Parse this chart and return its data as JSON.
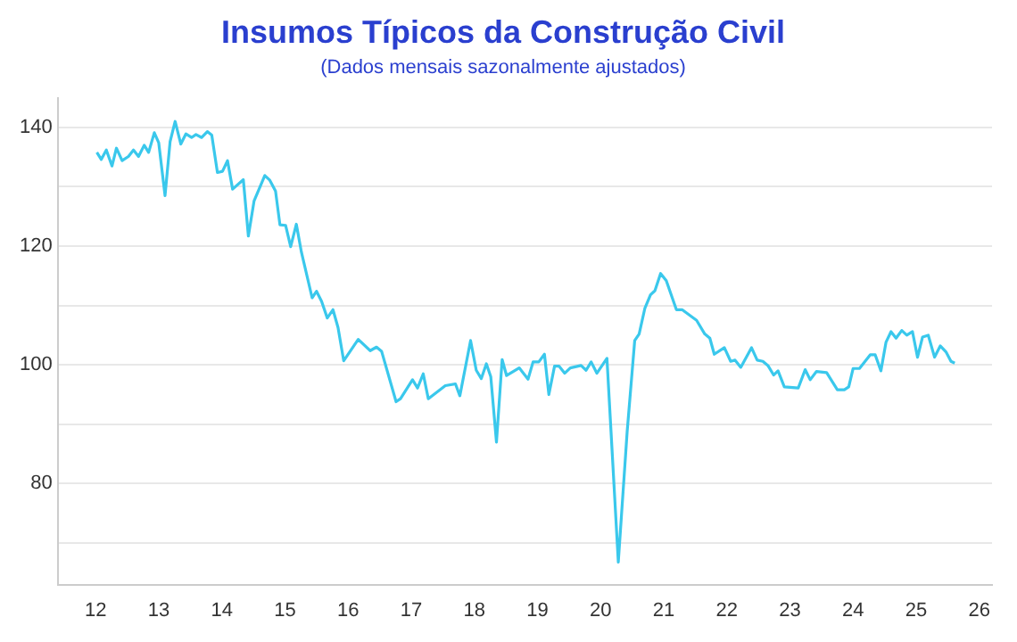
{
  "chart_data": {
    "type": "line",
    "title": "Insumos Típicos da Construção Civil",
    "subtitle": "(Dados mensais sazonalmente ajustados)",
    "xlim": [
      11.4,
      26.2
    ],
    "xticks": [
      12,
      13,
      14,
      15,
      16,
      17,
      18,
      19,
      20,
      21,
      22,
      23,
      24,
      25,
      26
    ],
    "ylim": [
      63,
      145
    ],
    "yticks": [
      {
        "value": 70,
        "label": null
      },
      80,
      {
        "value": 90,
        "label": null
      },
      100,
      {
        "value": 110,
        "label": null
      },
      120,
      {
        "value": 130,
        "label": null
      },
      140
    ],
    "grid": "y",
    "legend": false,
    "marker": "none",
    "line_style": "solid",
    "series": [
      {
        "color": "#3ac8ec",
        "x": [
          12.02,
          12.09,
          12.17,
          12.26,
          12.33,
          12.42,
          12.52,
          12.6,
          12.68,
          12.77,
          12.84,
          12.93,
          13.0,
          13.1,
          13.18,
          13.26,
          13.35,
          13.43,
          13.52,
          13.59,
          13.68,
          13.77,
          13.84,
          13.93,
          14.01,
          14.09,
          14.17,
          14.34,
          14.42,
          14.51,
          14.68,
          14.76,
          14.85,
          14.92,
          15.01,
          15.09,
          15.18,
          15.26,
          15.43,
          15.5,
          15.58,
          15.67,
          15.76,
          15.84,
          15.93,
          16.16,
          16.35,
          16.45,
          16.53,
          16.76,
          16.83,
          17.02,
          17.1,
          17.19,
          17.27,
          17.54,
          17.7,
          17.77,
          17.94,
          18.03,
          18.11,
          18.19,
          18.26,
          18.35,
          18.44,
          18.51,
          18.71,
          18.85,
          18.93,
          19.02,
          19.11,
          19.18,
          19.27,
          19.34,
          19.43,
          19.52,
          19.69,
          19.77,
          19.85,
          19.94,
          20.1,
          20.28,
          20.42,
          20.54,
          20.61,
          20.7,
          20.79,
          20.86,
          20.95,
          21.04,
          21.2,
          21.29,
          21.52,
          21.65,
          21.73,
          21.8,
          21.96,
          22.06,
          22.13,
          22.22,
          22.39,
          22.48,
          22.57,
          22.65,
          22.74,
          22.81,
          22.91,
          23.13,
          23.24,
          23.32,
          23.42,
          23.58,
          23.75,
          23.86,
          23.93,
          24.0,
          24.1,
          24.27,
          24.35,
          24.44,
          24.52,
          24.6,
          24.68,
          24.77,
          24.85,
          24.94,
          25.02,
          25.1,
          25.19,
          25.29,
          25.38,
          25.47,
          25.55,
          25.61
        ],
        "values": [
          135.8,
          134.6,
          136.2,
          133.5,
          136.5,
          134.4,
          135.1,
          136.2,
          135.1,
          137.0,
          135.8,
          139.1,
          137.4,
          128.5,
          137.6,
          141.0,
          137.2,
          138.9,
          138.3,
          138.8,
          138.3,
          139.3,
          138.7,
          132.4,
          132.6,
          134.4,
          129.6,
          131.2,
          121.7,
          127.6,
          131.9,
          131.1,
          129.3,
          123.6,
          123.5,
          119.9,
          123.7,
          119.0,
          111.3,
          112.4,
          110.7,
          107.9,
          109.3,
          106.3,
          100.7,
          104.3,
          102.4,
          103.0,
          102.3,
          93.8,
          94.3,
          97.5,
          96.1,
          98.5,
          94.3,
          96.5,
          96.8,
          94.8,
          104.1,
          99.1,
          97.7,
          100.2,
          98.0,
          87.0,
          100.9,
          98.2,
          99.5,
          97.6,
          100.5,
          100.5,
          101.8,
          95.0,
          99.8,
          99.8,
          98.6,
          99.5,
          99.9,
          99.1,
          100.5,
          98.6,
          101.1,
          66.8,
          88.7,
          104.1,
          105.2,
          109.5,
          111.8,
          112.5,
          115.4,
          114.2,
          109.3,
          109.3,
          107.5,
          105.2,
          104.5,
          101.8,
          102.9,
          100.6,
          100.8,
          99.6,
          102.9,
          100.8,
          100.6,
          99.9,
          98.3,
          99.0,
          96.3,
          96.1,
          99.2,
          97.5,
          98.9,
          98.7,
          95.8,
          95.8,
          96.3,
          99.4,
          99.4,
          101.7,
          101.7,
          99.0,
          103.8,
          105.6,
          104.5,
          105.8,
          105.0,
          105.6,
          101.3,
          104.7,
          105.0,
          101.3,
          103.2,
          102.2,
          100.6,
          100.3
        ]
      }
    ]
  }
}
